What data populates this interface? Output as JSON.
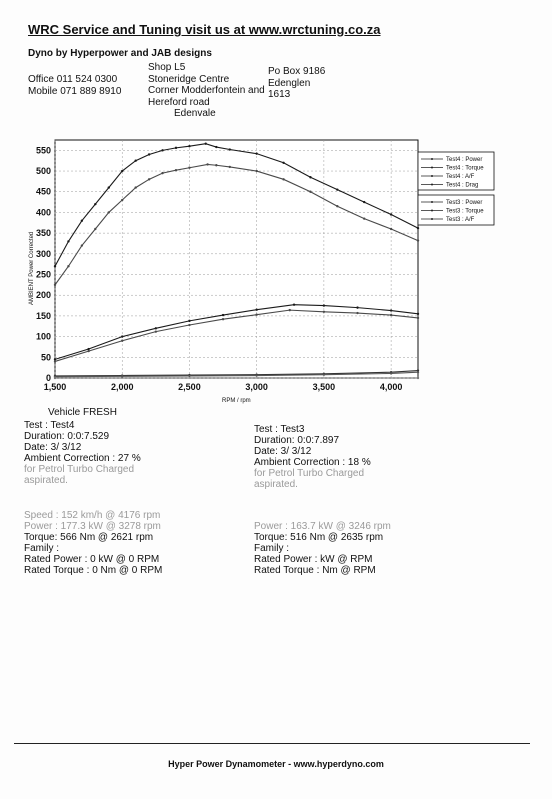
{
  "header": {
    "title": "WRC Service and Tuning visit us at www.wrctuning.co.za",
    "subtitle": "Dyno by Hyperpower and JAB designs",
    "contact_lines": [
      "Office 011 524 0300",
      "Mobile 071 889 8910"
    ],
    "address_lines": [
      "Shop L5",
      "Stoneridge Centre",
      "Corner Modderfontein and",
      "Hereford road",
      "Edenvale"
    ],
    "po_lines": [
      "Po Box 9186",
      "Edenglen",
      "1613"
    ]
  },
  "chart_data": {
    "type": "line",
    "xlabel": "RPM / rpm",
    "ylabel": "AMBIENT Power Corrected",
    "xlim": [
      1500,
      4200
    ],
    "ylim": [
      0,
      575
    ],
    "x_ticks": [
      "1,500",
      "2,000",
      "2,500",
      "3,000",
      "3,500",
      "4,000"
    ],
    "y_ticks": [
      "0",
      "50",
      "100",
      "150",
      "200",
      "250",
      "300",
      "350",
      "400",
      "450",
      "500",
      "550"
    ],
    "legend_position": "top-right",
    "legend": {
      "test4": [
        "Test4 : Power",
        "Test4 : Torque",
        "Test4 : A/F",
        "Test4 : Drag"
      ],
      "test3": [
        "Test3 : Power",
        "Test3 : Torque",
        "Test3 : A/F"
      ]
    },
    "series": [
      {
        "name": "Test4 : Torque",
        "color": "#1a1a1a",
        "x": [
          1500,
          1600,
          1700,
          1800,
          1900,
          2000,
          2100,
          2200,
          2300,
          2400,
          2500,
          2621,
          2700,
          2800,
          3000,
          3200,
          3400,
          3600,
          3800,
          4000,
          4200
        ],
        "y": [
          270,
          330,
          380,
          420,
          460,
          500,
          525,
          540,
          550,
          556,
          560,
          566,
          558,
          552,
          542,
          520,
          485,
          455,
          425,
          395,
          362
        ]
      },
      {
        "name": "Test3 : Torque",
        "color": "#4a4a4a",
        "x": [
          1500,
          1600,
          1700,
          1800,
          1900,
          2000,
          2100,
          2200,
          2300,
          2400,
          2500,
          2635,
          2700,
          2800,
          3000,
          3200,
          3400,
          3600,
          3800,
          4000,
          4200
        ],
        "y": [
          225,
          270,
          320,
          360,
          400,
          430,
          460,
          480,
          495,
          502,
          508,
          516,
          514,
          510,
          500,
          480,
          450,
          415,
          385,
          360,
          332
        ]
      },
      {
        "name": "Test4 : Power",
        "color": "#1a1a1a",
        "x": [
          1500,
          1750,
          2000,
          2250,
          2500,
          2750,
          3000,
          3278,
          3500,
          3750,
          4000,
          4200
        ],
        "y": [
          45,
          70,
          100,
          120,
          138,
          152,
          165,
          177,
          175,
          170,
          163,
          155
        ]
      },
      {
        "name": "Test3 : Power",
        "color": "#4a4a4a",
        "x": [
          1500,
          1750,
          2000,
          2250,
          2500,
          2750,
          3000,
          3246,
          3500,
          3750,
          4000,
          4200
        ],
        "y": [
          40,
          65,
          90,
          112,
          128,
          142,
          153,
          164,
          160,
          157,
          152,
          145
        ]
      },
      {
        "name": "Test4 : A/F",
        "color": "#333333",
        "x": [
          1500,
          2000,
          2500,
          3000,
          3500,
          4000,
          4200
        ],
        "y": [
          5,
          6,
          7,
          8,
          10,
          14,
          18
        ]
      },
      {
        "name": "Test3 : A/F",
        "color": "#555555",
        "x": [
          1500,
          2000,
          2500,
          3000,
          3500,
          4000,
          4200
        ],
        "y": [
          3,
          4,
          5,
          6,
          8,
          11,
          14
        ]
      },
      {
        "name": "Test4 : Drag",
        "color": "#777777",
        "x": [
          1500,
          4200
        ],
        "y": [
          0,
          0
        ]
      }
    ]
  },
  "vehicle": "Vehicle FRESH",
  "test4": {
    "test": "Test     : Test4",
    "duration": "Duration: 0:0:7.529",
    "date": "Date:  3/ 3/12",
    "ambient": "Ambient Correction : 27 %",
    "ambient_note1": " for Petrol Turbo Charged",
    "ambient_note2": "aspirated.",
    "speed": "Speed : 152 km/h @ 4176 rpm",
    "power": "Power : 177.3 kW @ 3278 rpm",
    "torque": "Torque: 566 Nm @ 2621 rpm",
    "family": "Family :",
    "rated_power": "Rated Power : 0 kW @ 0 RPM",
    "rated_torque": "Rated Torque : 0 Nm @ 0 RPM"
  },
  "test3": {
    "test": "Test     : Test3",
    "duration": "Duration: 0:0:7.897",
    "date": "Date:  3/ 3/12",
    "ambient": "Ambient Correction : 18 %",
    "ambient_note1": " for Petrol Turbo Charged",
    "ambient_note2": "aspirated.",
    "power": "Power : 163.7 kW @ 3246 rpm",
    "torque": "Torque: 516 Nm @ 2635 rpm",
    "family": "Family :",
    "rated_power": "Rated Power :  kW @  RPM",
    "rated_torque": "Rated Torque :  Nm @  RPM"
  },
  "footer": "Hyper Power Dynamometer  -  www.hyperdyno.com"
}
